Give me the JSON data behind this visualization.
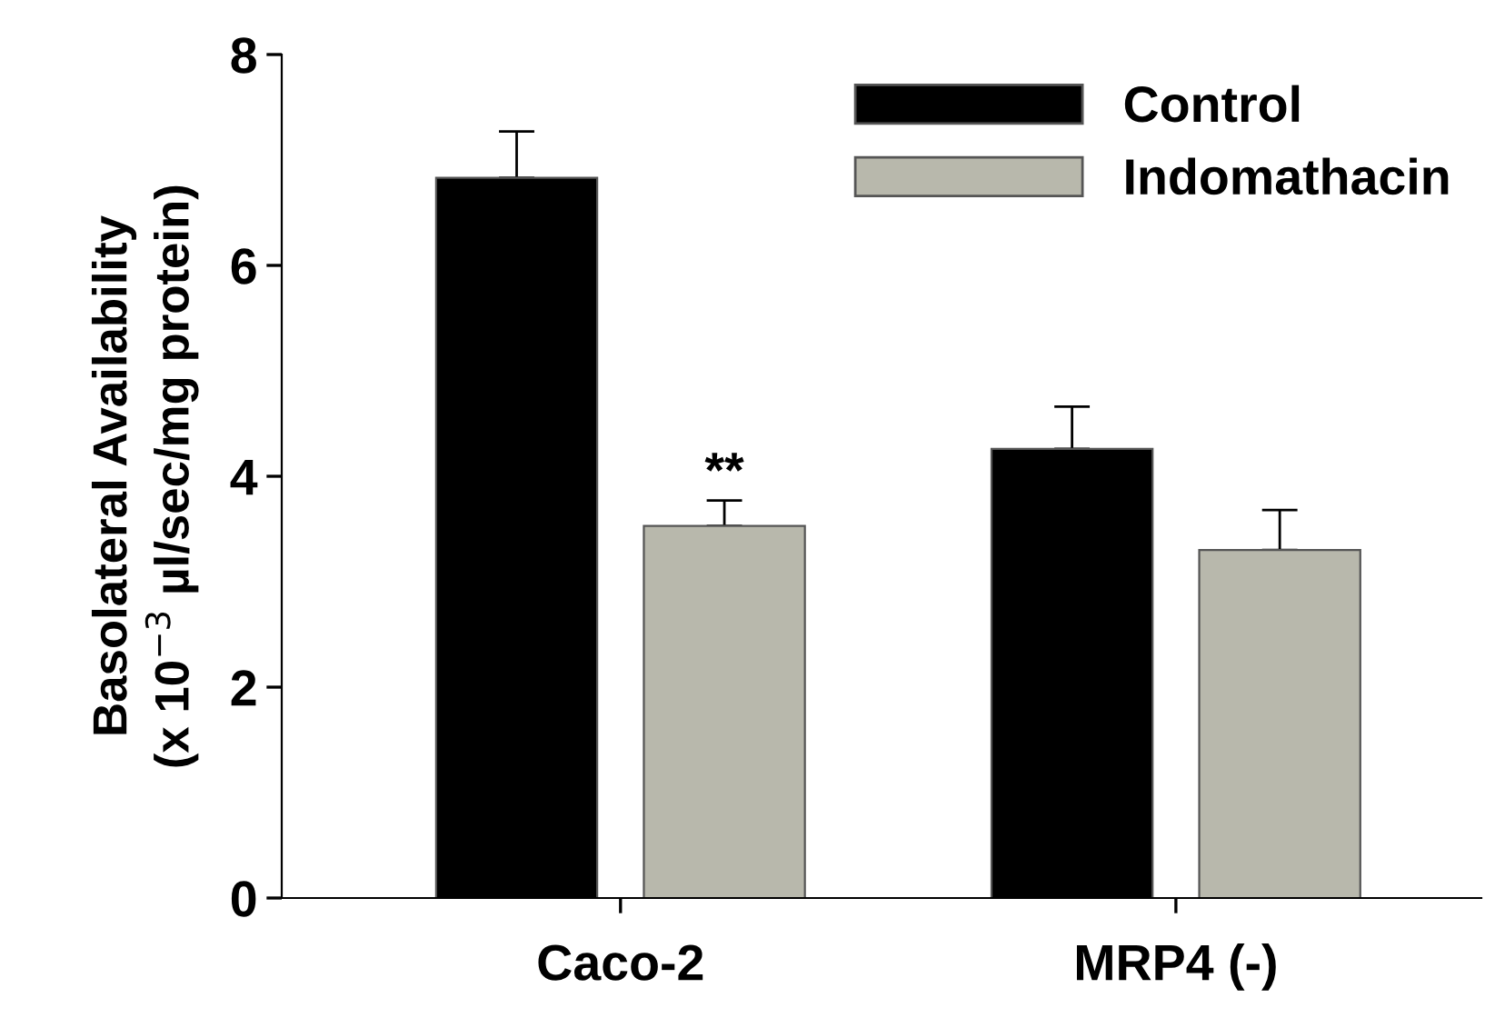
{
  "chart_data": {
    "type": "bar",
    "ylabel": "Basolateral Availability\n(x 10$^{−3}$ µl/sec/mg protein)",
    "categories": [
      "Caco-2",
      "MRP4 (-)"
    ],
    "series": [
      {
        "name": "Control",
        "color": "#000000",
        "values": [
          6.83,
          4.26
        ],
        "errors": [
          [
            6.83,
            7.27
          ],
          [
            4.26,
            4.66
          ]
        ]
      },
      {
        "name": "Indomathacin",
        "color": "#b8b8ac",
        "values": [
          3.53,
          3.3
        ],
        "errors": [
          [
            3.53,
            3.77
          ],
          [
            3.3,
            3.68
          ]
        ]
      }
    ],
    "annotations": [
      "**"
    ],
    "ylim": [
      0,
      8
    ],
    "yticks": [
      0,
      2,
      4,
      6,
      8
    ],
    "grid": false,
    "legend": "top right"
  }
}
